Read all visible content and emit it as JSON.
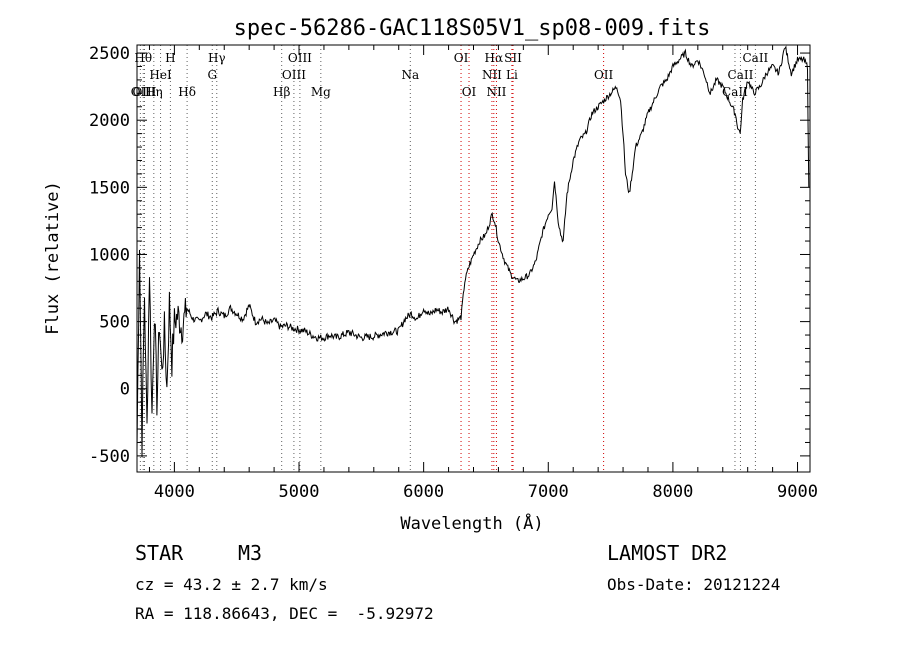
{
  "chart_data": {
    "type": "line",
    "title": "spec-56286-GAC118S05V1_sp08-009.fits",
    "xlabel": "Wavelength (Å)",
    "ylabel": "Flux (relative)",
    "xlim": [
      3700,
      9100
    ],
    "ylim": [
      -620,
      2560
    ],
    "xticks": [
      4000,
      5000,
      6000,
      7000,
      8000,
      9000
    ],
    "yticks": [
      -500,
      0,
      500,
      1000,
      1500,
      2000,
      2500
    ],
    "grid": false,
    "series": [
      {
        "x": [
          3700,
          3720,
          3740,
          3760,
          3780,
          3800,
          3820,
          3840,
          3860,
          3880,
          3900,
          3920,
          3940,
          3960,
          3980,
          4000,
          4030,
          4060,
          4100,
          4150,
          4200,
          4250,
          4300,
          4350,
          4400,
          4450,
          4500,
          4550,
          4600,
          4650,
          4700,
          4750,
          4800,
          4850,
          4900,
          4950,
          5000,
          5050,
          5100,
          5150,
          5200,
          5250,
          5300,
          5400,
          5500,
          5600,
          5700,
          5800,
          5850,
          5900,
          5950,
          6000,
          6050,
          6100,
          6150,
          6200,
          6250,
          6300,
          6330,
          6360,
          6400,
          6450,
          6500,
          6550,
          6570,
          6600,
          6650,
          6700,
          6750,
          6800,
          6850,
          6900,
          6950,
          7000,
          7030,
          7050,
          7080,
          7100,
          7120,
          7150,
          7200,
          7250,
          7300,
          7350,
          7400,
          7450,
          7500,
          7550,
          7580,
          7600,
          7620,
          7650,
          7680,
          7700,
          7750,
          7800,
          7850,
          7900,
          7950,
          8000,
          8050,
          8100,
          8150,
          8200,
          8250,
          8300,
          8350,
          8400,
          8450,
          8500,
          8520,
          8540,
          8560,
          8600,
          8650,
          8700,
          8750,
          8800,
          8850,
          8900,
          8950,
          9000,
          9050,
          9080,
          9090
        ],
        "y": [
          -450,
          1100,
          -400,
          700,
          -300,
          900,
          -200,
          600,
          -100,
          500,
          100,
          450,
          0,
          650,
          200,
          500,
          550,
          450,
          600,
          520,
          500,
          560,
          530,
          580,
          540,
          600,
          560,
          520,
          620,
          500,
          520,
          480,
          510,
          460,
          470,
          450,
          440,
          430,
          400,
          380,
          380,
          400,
          380,
          420,
          380,
          390,
          420,
          430,
          520,
          560,
          520,
          600,
          550,
          590,
          570,
          600,
          500,
          530,
          800,
          900,
          1000,
          1100,
          1150,
          1300,
          1250,
          1100,
          950,
          850,
          800,
          820,
          850,
          950,
          1150,
          1300,
          1350,
          1550,
          1250,
          1150,
          1100,
          1450,
          1700,
          1850,
          1900,
          2050,
          2100,
          2150,
          2200,
          2250,
          2150,
          1900,
          1600,
          1450,
          1650,
          1800,
          1900,
          2050,
          2150,
          2250,
          2300,
          2400,
          2450,
          2500,
          2400,
          2450,
          2350,
          2200,
          2300,
          2250,
          2150,
          2050,
          1950,
          1900,
          2150,
          2300,
          2200,
          2250,
          2350,
          2400,
          2350,
          2550,
          2350,
          2450,
          2450,
          2400,
          1500
        ]
      }
    ],
    "lines": [
      {
        "wl": 3727,
        "labels": [
          "OII"
        ],
        "rows": [
          2
        ]
      },
      {
        "wl": 3750,
        "labels": [
          "Hθ"
        ],
        "rows": [
          0
        ]
      },
      {
        "wl": 3760,
        "labels": [
          "OIII"
        ],
        "rows": [
          2
        ]
      },
      {
        "wl": 3835,
        "labels": [
          "Hη"
        ],
        "rows": [
          2
        ]
      },
      {
        "wl": 3889,
        "labels": [
          "HeI"
        ],
        "rows": [
          1
        ]
      },
      {
        "wl": 3968,
        "labels": [
          "H"
        ],
        "rows": [
          0
        ]
      },
      {
        "wl": 4102,
        "labels": [
          "Hδ"
        ],
        "rows": [
          2
        ]
      },
      {
        "wl": 4304,
        "labels": [
          "G"
        ],
        "rows": [
          1
        ]
      },
      {
        "wl": 4340,
        "labels": [
          "Hγ"
        ],
        "rows": [
          0
        ]
      },
      {
        "wl": 4861,
        "labels": [
          "Hβ"
        ],
        "rows": [
          2
        ]
      },
      {
        "wl": 4959,
        "labels": [
          "OIII"
        ],
        "rows": [
          1
        ]
      },
      {
        "wl": 5007,
        "labels": [
          "OIII"
        ],
        "rows": [
          0
        ]
      },
      {
        "wl": 5175,
        "labels": [
          "Mg"
        ],
        "rows": [
          2
        ]
      },
      {
        "wl": 5893,
        "labels": [
          "Na"
        ],
        "rows": [
          1
        ]
      },
      {
        "wl": 6300,
        "labels": [
          "OI"
        ],
        "rows": [
          0
        ]
      },
      {
        "wl": 6364,
        "labels": [
          "OI"
        ],
        "rows": [
          2
        ]
      },
      {
        "wl": 6548,
        "labels": [
          "NII"
        ],
        "rows": [
          1
        ]
      },
      {
        "wl": 6563,
        "labels": [
          "Hα"
        ],
        "rows": [
          0
        ]
      },
      {
        "wl": 6584,
        "labels": [
          "NII"
        ],
        "rows": [
          2
        ]
      },
      {
        "wl": 6708,
        "labels": [
          "Li"
        ],
        "rows": [
          1
        ]
      },
      {
        "wl": 6717,
        "labels": [
          "SII"
        ],
        "rows": [
          0
        ]
      },
      {
        "wl": 7444,
        "labels": [
          "OII"
        ],
        "rows": [
          1
        ]
      },
      {
        "wl": 8498,
        "labels": [
          "CaII"
        ],
        "rows": [
          2
        ]
      },
      {
        "wl": 8542,
        "labels": [
          "CaII"
        ],
        "rows": [
          1
        ]
      },
      {
        "wl": 8662,
        "labels": [
          "CaII"
        ],
        "rows": [
          0
        ]
      }
    ]
  },
  "info": {
    "object_type": "STAR",
    "subclass": "M3",
    "survey": "LAMOST DR2",
    "cz": "cz = 43.2 ± 2.7 km/s",
    "obs_date": "Obs-Date: 20121224",
    "coords": "RA = 118.86643, DEC =  -5.92972"
  },
  "colors": {
    "spectrum": "#000000",
    "emission_lines": "#d00000",
    "absorption_lines": "#606060"
  }
}
